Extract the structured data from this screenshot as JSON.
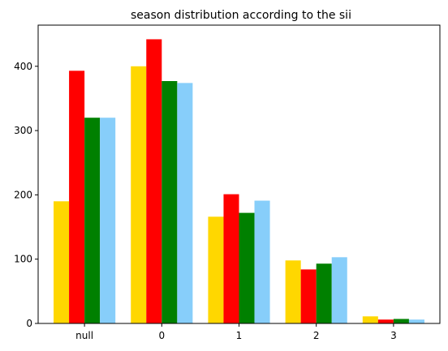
{
  "chart_data": {
    "type": "bar",
    "title": "season distribution according to the sii",
    "xlabel": "",
    "ylabel": "",
    "categories": [
      "null",
      "0",
      "1",
      "2",
      "3"
    ],
    "series": [
      {
        "color": "#FFD700",
        "values": [
          190,
          400,
          166,
          98,
          11
        ]
      },
      {
        "color": "#FF0000",
        "values": [
          393,
          442,
          201,
          84,
          6
        ]
      },
      {
        "color": "#008000",
        "values": [
          320,
          377,
          172,
          93,
          7
        ]
      },
      {
        "color": "#87CEFA",
        "values": [
          320,
          374,
          191,
          103,
          6
        ]
      }
    ],
    "yticks": [
      0,
      100,
      200,
      300,
      400
    ],
    "ylim": [
      0,
      464
    ],
    "grid": false,
    "legend": "none"
  }
}
